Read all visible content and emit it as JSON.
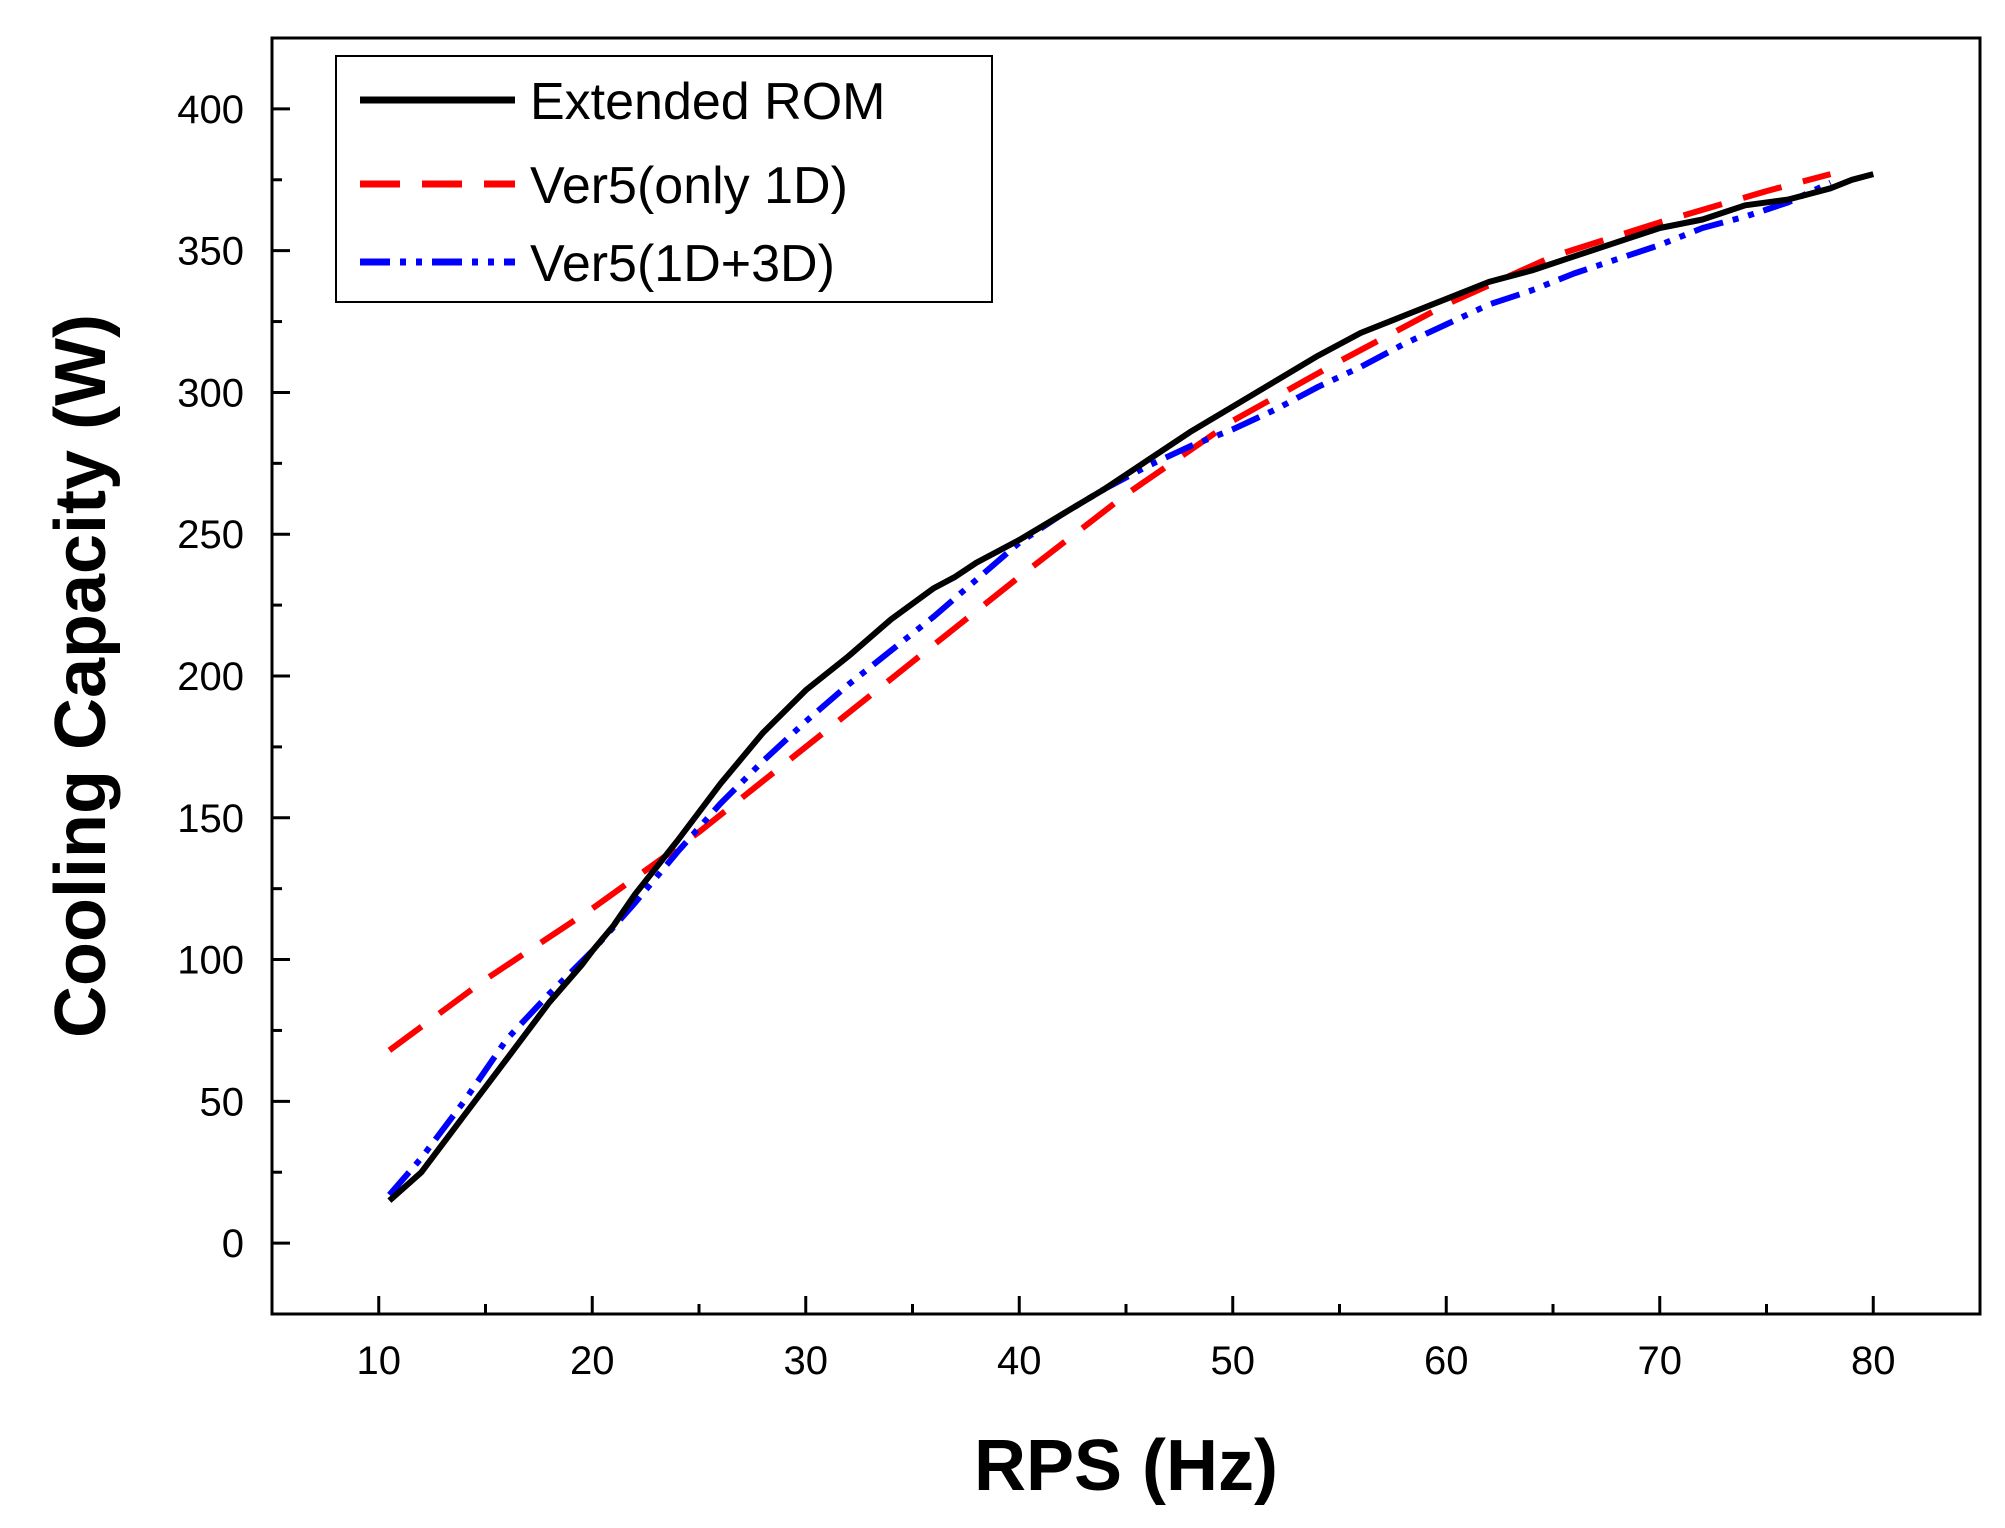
{
  "chart_data": {
    "type": "line",
    "title": "",
    "xlabel": "RPS (Hz)",
    "ylabel": "Cooling Capacity (W)",
    "xlim": [
      5,
      85
    ],
    "ylim": [
      -25,
      425
    ],
    "xticks": [
      10,
      20,
      30,
      40,
      50,
      60,
      70,
      80
    ],
    "yticks": [
      0,
      50,
      100,
      150,
      200,
      250,
      300,
      350,
      400
    ],
    "grid": false,
    "legend_position": "top-left",
    "series": [
      {
        "name": "Extended ROM",
        "color": "#000000",
        "style": "solid",
        "x": [
          10.5,
          12,
          14,
          16,
          18,
          19.5,
          20,
          21,
          22,
          24,
          26,
          28,
          30,
          32,
          34,
          36,
          37,
          38,
          40,
          42,
          44,
          46,
          48,
          50,
          52,
          54,
          56,
          58,
          60,
          62,
          64,
          66,
          68,
          70,
          72,
          74,
          76,
          77,
          78,
          79,
          80
        ],
        "y": [
          15,
          25,
          45,
          65,
          85,
          98,
          103,
          112,
          123,
          142,
          162,
          180,
          195,
          207,
          220,
          231,
          235,
          240,
          248,
          257,
          266,
          276,
          286,
          295,
          304,
          313,
          321,
          327,
          333,
          339,
          343,
          348,
          353,
          358,
          361,
          366,
          368,
          370,
          372,
          375,
          377
        ]
      },
      {
        "name": "Ver5(only 1D)",
        "color": "#ff0000",
        "style": "dashed",
        "x": [
          10.5,
          15,
          20,
          25,
          30,
          35,
          40,
          45,
          50,
          55,
          60,
          65,
          70,
          75,
          78
        ],
        "y": [
          68,
          93,
          118,
          145,
          175,
          205,
          235,
          264,
          290,
          311,
          331,
          348,
          360,
          371,
          377
        ]
      },
      {
        "name": "Ver5(1D+3D)",
        "color": "#0000ff",
        "style": "dash-dot-dot",
        "x": [
          10.5,
          12,
          14,
          16,
          18,
          20,
          22,
          24,
          26,
          28,
          30,
          32,
          34,
          36,
          38,
          40,
          42,
          44,
          46,
          48,
          50,
          52,
          54,
          56,
          58,
          60,
          62,
          64,
          66,
          68,
          70,
          72,
          74,
          76,
          78
        ],
        "y": [
          17,
          30,
          50,
          72,
          88,
          103,
          120,
          138,
          155,
          170,
          184,
          197,
          209,
          221,
          234,
          247,
          257,
          266,
          274,
          281,
          287,
          294,
          302,
          309,
          317,
          324,
          331,
          336,
          342,
          347,
          352,
          358,
          362,
          367,
          374
        ]
      }
    ]
  }
}
